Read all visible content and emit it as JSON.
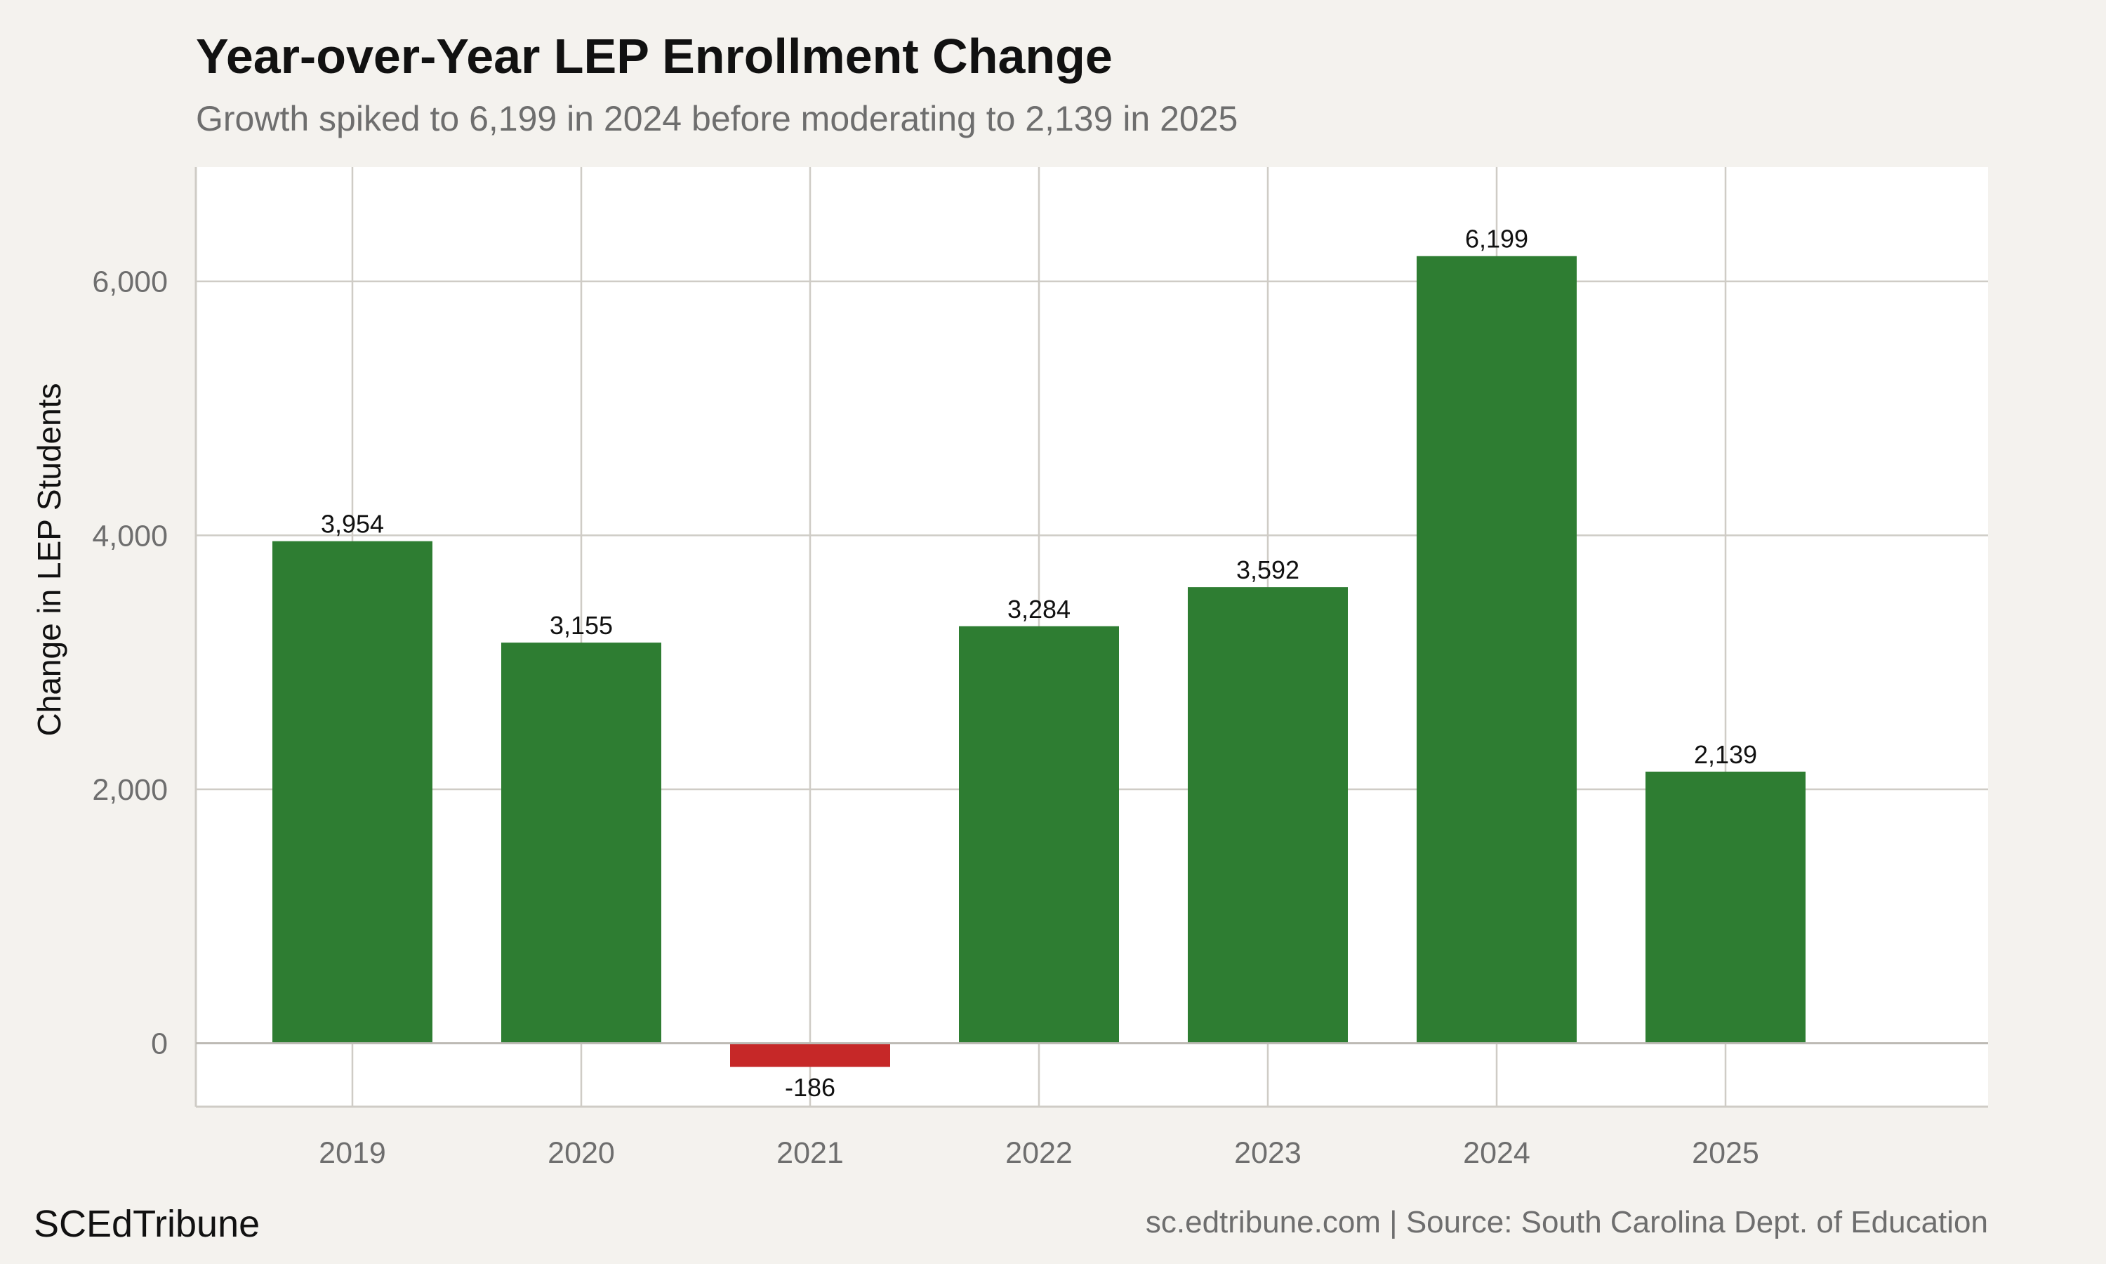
{
  "chart_data": {
    "type": "bar",
    "title": "Year-over-Year LEP Enrollment Change",
    "subtitle": "Growth spiked to 6,199 in 2024 before moderating to 2,139 in 2025",
    "xlabel": "",
    "ylabel": "Change in LEP Students",
    "categories": [
      "2019",
      "2020",
      "2021",
      "2022",
      "2023",
      "2024",
      "2025"
    ],
    "values": [
      3954,
      3155,
      -186,
      3284,
      3592,
      6199,
      2139
    ],
    "data_labels": [
      "3,954",
      "3,155",
      "-186",
      "3,284",
      "3,592",
      "6,199",
      "2,139"
    ],
    "ylim": [
      -500,
      6900
    ],
    "yticks": [
      0,
      2000,
      4000,
      6000
    ],
    "ytick_labels": [
      "0",
      "2,000",
      "4,000",
      "6,000"
    ],
    "grid": true,
    "legend": "none",
    "colors": {
      "positive": "#2e7d32",
      "negative": "#c62828",
      "panel": "#ffffff",
      "background": "#f4f2ee",
      "grid": "#cfccc6"
    }
  },
  "footer": {
    "brand": "SCEdTribune",
    "source": "sc.edtribune.com | Source: South Carolina Dept. of Education"
  }
}
